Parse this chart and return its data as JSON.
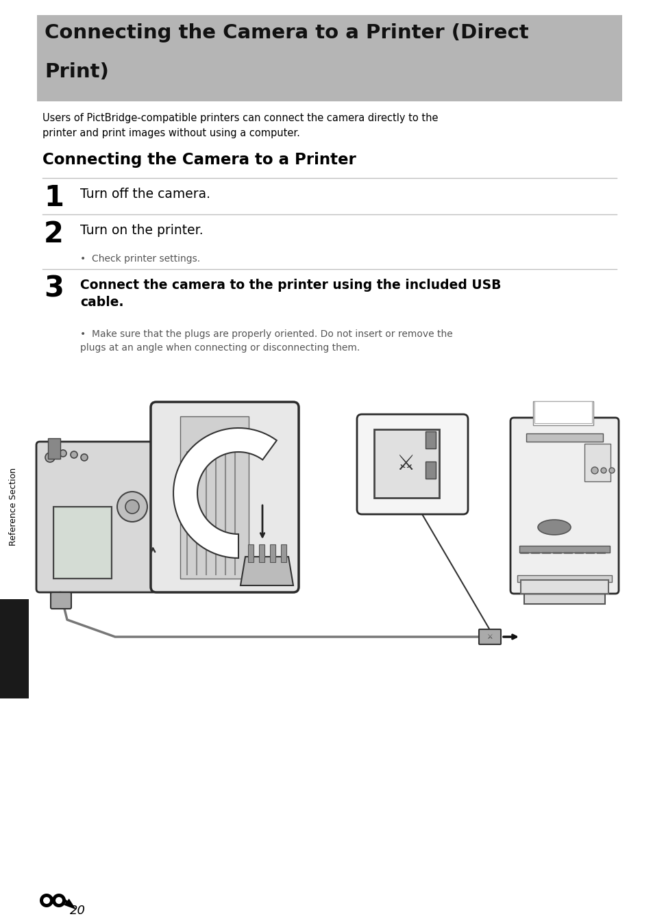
{
  "title_line1": "Connecting the Camera to a Printer (Direct",
  "title_line2": "Print)",
  "header_bg": "#b5b5b5",
  "intro": "Users of PictBridge-compatible printers can connect the camera directly to the\nprinter and print images without using a computer.",
  "subtitle": "Connecting the Camera to a Printer",
  "step1_num": "1",
  "step1_text": "Turn off the camera.",
  "step2_num": "2",
  "step2_text": "Turn on the printer.",
  "step2_bullet": "Check printer settings.",
  "step3_num": "3",
  "step3_text": "Connect the camera to the printer using the included USB\ncable.",
  "step3_bullet": "Make sure that the plugs are properly oriented. Do not insert or remove the\nplugs at an angle when connecting or disconnecting them.",
  "side_label": "Reference Section",
  "page_num": "20",
  "bg_color": "#ffffff",
  "text_color": "#000000",
  "gray_text": "#555555",
  "line_color": "#c0c0c0",
  "black_tab": "#1a1a1a",
  "header_text_color": "#111111"
}
